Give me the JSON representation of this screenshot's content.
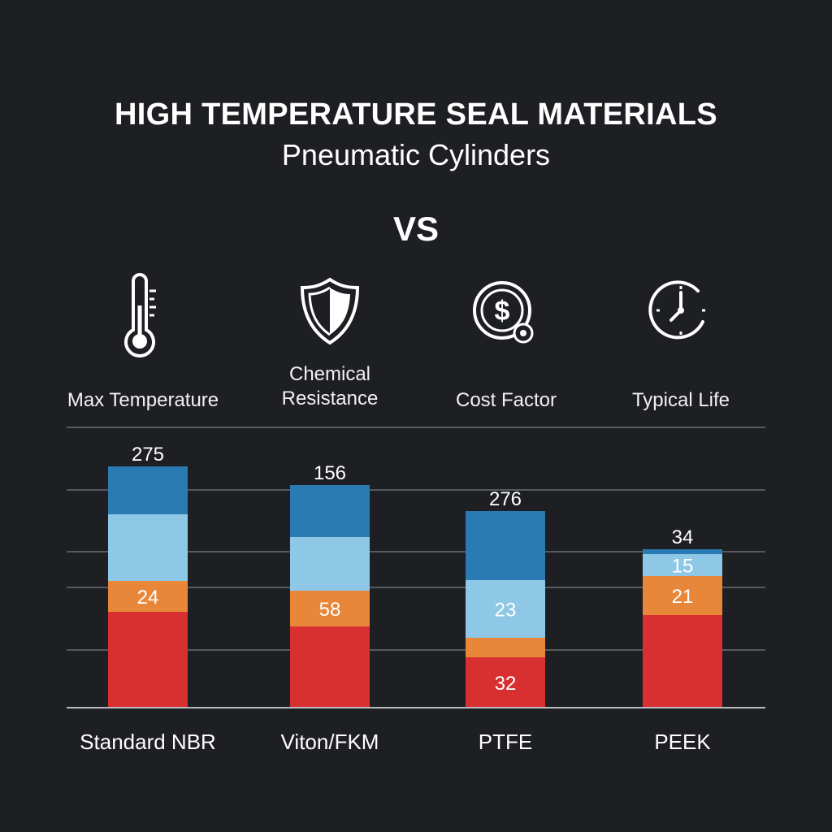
{
  "header": {
    "title": "HIGH TEMPERATURE SEAL MATERIALS",
    "subtitle": "Pneumatic Cylinders",
    "versus": "VS"
  },
  "metrics": [
    {
      "label": "Max Temperature",
      "icon": "thermometer-icon"
    },
    {
      "label": "Chemical\nResistance",
      "icon": "shield-icon"
    },
    {
      "label": "Cost Factor",
      "icon": "dollar-coin-icon"
    },
    {
      "label": "Typical Life",
      "icon": "clock-icon"
    }
  ],
  "colors": {
    "background": "#1e1f23",
    "dark_blue": "#2a7ab3",
    "light_blue": "#8ec8e6",
    "orange": "#e8873a",
    "red": "#d83030",
    "gridline": "#6a6d74"
  },
  "chart_data": {
    "type": "bar",
    "stacked": true,
    "categories": [
      "Standard NBR",
      "Viton/FKM",
      "PTFE",
      "PEEK"
    ],
    "series": [
      {
        "color": "#d83030",
        "values": [
          118,
          100,
          62,
          114
        ],
        "labels": [
          "",
          "",
          "32",
          ""
        ]
      },
      {
        "color": "#e8873a",
        "values": [
          38,
          44,
          24,
          48
        ],
        "labels": [
          "24",
          "58",
          "",
          "21"
        ]
      },
      {
        "color": "#8ec8e6",
        "values": [
          82,
          66,
          71,
          27
        ],
        "labels": [
          "",
          "",
          "23",
          "15"
        ]
      },
      {
        "color": "#2a7ab3",
        "values": [
          59,
          64,
          85,
          6
        ],
        "labels": [
          "",
          "",
          "",
          ""
        ]
      }
    ],
    "top_labels": [
      "275",
      "156",
      "276",
      "34"
    ],
    "grid": true,
    "ylim": [
      0,
      345
    ]
  }
}
